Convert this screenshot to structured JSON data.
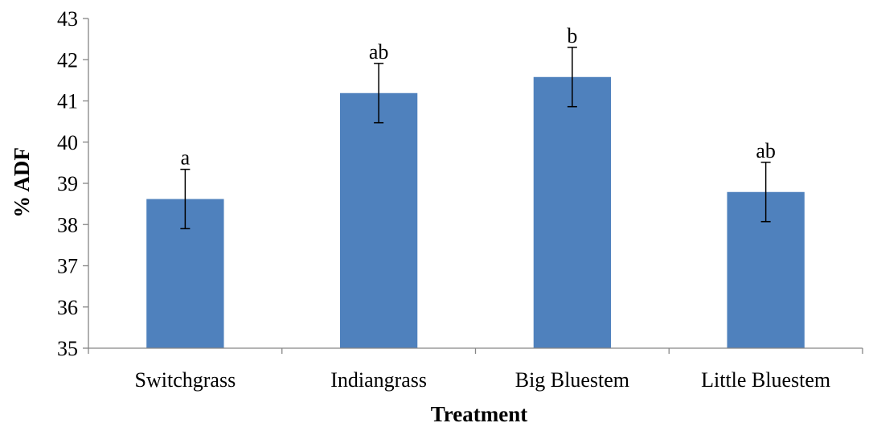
{
  "chart_data": {
    "type": "bar",
    "xlabel": "Treatment",
    "ylabel": "% ADF",
    "ylim": [
      35,
      43
    ],
    "yticks": [
      35,
      36,
      37,
      38,
      39,
      40,
      41,
      42,
      43
    ],
    "categories": [
      "Switchgrass",
      "Indiangrass",
      "Big Bluestem",
      "Little Bluestem"
    ],
    "values": [
      38.62,
      41.19,
      41.58,
      38.79
    ],
    "error": [
      0.72,
      0.72,
      0.72,
      0.72
    ],
    "significance": [
      "a",
      "ab",
      "b",
      "ab"
    ],
    "grid": false,
    "legend": "none",
    "bar_color": "#4F81BD"
  }
}
